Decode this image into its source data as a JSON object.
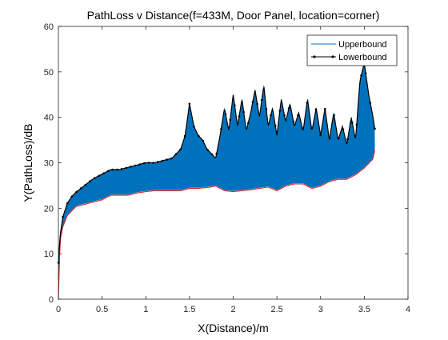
{
  "chart_data": {
    "type": "area",
    "title": "PathLoss v Distance(f=433M, Door Panel, location=corner)",
    "xlabel": "X(Distance)/m",
    "ylabel": "Y(PathLoss)/dB",
    "xlim": [
      0,
      4
    ],
    "ylim": [
      0,
      60
    ],
    "xticks": [
      "0",
      "0.5",
      "1",
      "1.5",
      "2",
      "2.5",
      "3",
      "3.5",
      "4"
    ],
    "yticks": [
      "0",
      "10",
      "20",
      "30",
      "40",
      "50",
      "60"
    ],
    "legend_position": "top-right",
    "grid": false,
    "series": [
      {
        "name": "Upperbound",
        "color": "#0072bd",
        "x": [
          0,
          0.02,
          0.05,
          0.1,
          0.15,
          0.2,
          0.3,
          0.4,
          0.5,
          0.6,
          0.7,
          0.8,
          0.9,
          1.0,
          1.1,
          1.2,
          1.3,
          1.4,
          1.45,
          1.5,
          1.55,
          1.6,
          1.65,
          1.7,
          1.75,
          1.8,
          1.85,
          1.9,
          1.95,
          2.0,
          2.05,
          2.1,
          2.15,
          2.2,
          2.25,
          2.3,
          2.35,
          2.4,
          2.45,
          2.5,
          2.55,
          2.6,
          2.65,
          2.7,
          2.75,
          2.8,
          2.85,
          2.9,
          2.95,
          3.0,
          3.05,
          3.1,
          3.15,
          3.2,
          3.25,
          3.3,
          3.35,
          3.4,
          3.45,
          3.5,
          3.55,
          3.6,
          3.62
        ],
        "y": [
          8,
          14,
          18,
          21,
          22.5,
          23.5,
          25,
          26.5,
          27.5,
          28.5,
          28.5,
          29,
          29.5,
          30,
          30,
          30.5,
          31,
          33,
          36,
          43,
          38,
          36,
          35,
          33,
          32,
          31,
          36,
          42,
          37,
          45,
          38,
          44,
          37,
          41,
          46,
          40,
          47,
          38,
          42,
          36,
          44,
          39,
          43,
          38,
          41,
          37,
          44,
          37,
          42,
          36,
          42,
          35,
          41,
          35,
          38,
          34,
          40,
          35,
          48,
          52,
          45,
          40,
          37.5
        ]
      },
      {
        "name": "Lowerbound",
        "color": "#000000",
        "x": [
          0,
          0.02,
          0.05,
          0.1,
          0.15,
          0.2,
          0.3,
          0.4,
          0.5,
          0.6,
          0.7,
          0.8,
          0.9,
          1.0,
          1.1,
          1.2,
          1.3,
          1.4,
          1.5,
          1.6,
          1.7,
          1.8,
          1.9,
          2.0,
          2.1,
          2.2,
          2.3,
          2.4,
          2.5,
          2.6,
          2.7,
          2.8,
          2.9,
          3.0,
          3.1,
          3.2,
          3.3,
          3.4,
          3.5,
          3.6,
          3.62
        ],
        "y": [
          0,
          13,
          16,
          18.5,
          19.5,
          20.5,
          21,
          21.5,
          22,
          23,
          23,
          23,
          23.5,
          23.8,
          24,
          24,
          24,
          24,
          24.5,
          24.5,
          24.7,
          25,
          24,
          23.8,
          24,
          24.2,
          24.5,
          24.8,
          24,
          25,
          25.5,
          25.5,
          24.5,
          25,
          26,
          26.5,
          26.5,
          27.5,
          29,
          31,
          33
        ]
      }
    ]
  }
}
